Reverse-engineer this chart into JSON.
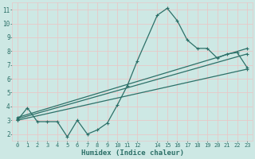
{
  "xlabel": "Humidex (Indice chaleur)",
  "bg_color": "#cde8e4",
  "grid_color": "#e8c8c8",
  "line_color": "#2d7068",
  "ylim": [
    1.5,
    11.5
  ],
  "xlim": [
    -0.5,
    23.5
  ],
  "yticks": [
    2,
    3,
    4,
    5,
    6,
    7,
    8,
    9,
    10,
    11
  ],
  "xticks": [
    0,
    1,
    2,
    3,
    4,
    5,
    6,
    7,
    8,
    9,
    10,
    11,
    12,
    14,
    15,
    16,
    17,
    18,
    19,
    20,
    21,
    22,
    23
  ],
  "xtick_labels": [
    "0",
    "1",
    "2",
    "3",
    "4",
    "5",
    "6",
    "7",
    "8",
    "9",
    "10",
    "11",
    "12",
    "14",
    "15",
    "16",
    "17",
    "18",
    "19",
    "20",
    "21",
    "22",
    "23"
  ],
  "lines": [
    {
      "x": [
        0,
        1,
        2,
        3,
        4,
        5,
        6,
        7,
        8,
        9,
        10,
        11,
        12,
        14,
        15,
        16,
        17,
        18,
        19,
        20,
        21,
        22,
        23
      ],
      "y": [
        3.0,
        3.9,
        2.9,
        2.9,
        2.9,
        1.8,
        3.0,
        2.0,
        2.3,
        2.8,
        4.1,
        5.5,
        7.3,
        10.6,
        11.1,
        10.2,
        8.8,
        8.2,
        8.2,
        7.5,
        7.8,
        7.9,
        6.8
      ]
    },
    {
      "x": [
        0,
        23
      ],
      "y": [
        3.0,
        6.7
      ]
    },
    {
      "x": [
        0,
        23
      ],
      "y": [
        3.1,
        7.8
      ]
    },
    {
      "x": [
        0,
        23
      ],
      "y": [
        3.2,
        8.2
      ]
    }
  ]
}
